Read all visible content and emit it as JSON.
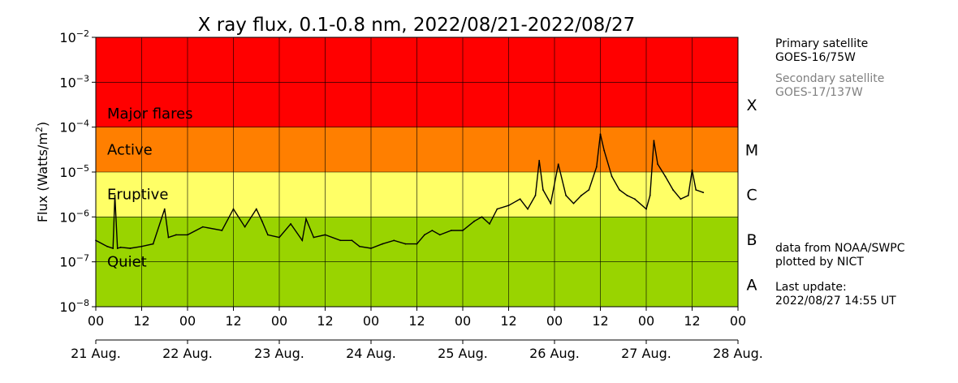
{
  "chart_data": {
    "type": "line",
    "title": "X ray flux, 0.1-0.8 nm, 2022/08/21-2022/08/27",
    "ylabel": "Flux (Watts/m",
    "ylabel_sup": "2",
    "ylabel_close": ")",
    "yscale": "log",
    "ylim": [
      1e-08,
      0.01
    ],
    "y_ticks": [
      {
        "value": 1e-08,
        "base": "10",
        "exp": "−8"
      },
      {
        "value": 1e-07,
        "base": "10",
        "exp": "−7"
      },
      {
        "value": 1e-06,
        "base": "10",
        "exp": "−6"
      },
      {
        "value": 1e-05,
        "base": "10",
        "exp": "−5"
      },
      {
        "value": 0.0001,
        "base": "10",
        "exp": "−4"
      },
      {
        "value": 0.001,
        "base": "10",
        "exp": "−3"
      },
      {
        "value": 0.01,
        "base": "10",
        "exp": "−2"
      }
    ],
    "xlim": [
      "2022-08-21 00:00",
      "2022-08-28 00:00"
    ],
    "x_hour_ticks": [
      "00",
      "12",
      "00",
      "12",
      "00",
      "12",
      "00",
      "12",
      "00",
      "12",
      "00",
      "12",
      "00",
      "12",
      "00"
    ],
    "x_day_labels": [
      "21 Aug.",
      "22 Aug.",
      "23 Aug.",
      "24 Aug.",
      "25 Aug.",
      "26 Aug.",
      "27 Aug.",
      "28 Aug."
    ],
    "grid": true,
    "bands": [
      {
        "name": "Major flares",
        "from": 0.0001,
        "to": 0.01,
        "color": "#ff0000"
      },
      {
        "name": "Active",
        "from": 1e-05,
        "to": 0.0001,
        "color": "#ff7f00"
      },
      {
        "name": "Eruptive",
        "from": 1e-06,
        "to": 1e-05,
        "color": "#ffff66"
      },
      {
        "name": "Quiet",
        "from": 1e-08,
        "to": 1e-06,
        "color": "#99d400"
      }
    ],
    "classes": [
      {
        "label": "X",
        "value": 0.000316
      },
      {
        "label": "M",
        "value": 3.16e-05
      },
      {
        "label": "C",
        "value": 3.16e-06
      },
      {
        "label": "B",
        "value": 3.16e-07
      },
      {
        "label": "A",
        "value": 3.16e-08
      }
    ],
    "series": [
      {
        "color": "#000000",
        "x": [
          "2022-08-21 00:00",
          "2022-08-21 03:00",
          "2022-08-21 04:30",
          "2022-08-21 05:00",
          "2022-08-21 05:40",
          "2022-08-21 06:30",
          "2022-08-21 09:00",
          "2022-08-21 12:00",
          "2022-08-21 15:00",
          "2022-08-21 18:00",
          "2022-08-21 19:00",
          "2022-08-21 21:00",
          "2022-08-22 00:00",
          "2022-08-22 04:00",
          "2022-08-22 09:00",
          "2022-08-22 12:00",
          "2022-08-22 15:00",
          "2022-08-22 18:00",
          "2022-08-22 19:30",
          "2022-08-22 21:00",
          "2022-08-23 00:00",
          "2022-08-23 03:00",
          "2022-08-23 06:00",
          "2022-08-23 07:00",
          "2022-08-23 09:00",
          "2022-08-23 12:00",
          "2022-08-23 16:00",
          "2022-08-23 19:00",
          "2022-08-23 21:00",
          "2022-08-24 00:00",
          "2022-08-24 03:00",
          "2022-08-24 06:00",
          "2022-08-24 09:00",
          "2022-08-24 12:00",
          "2022-08-24 14:00",
          "2022-08-24 16:00",
          "2022-08-24 18:00",
          "2022-08-24 21:00",
          "2022-08-25 00:00",
          "2022-08-25 03:00",
          "2022-08-25 05:00",
          "2022-08-25 07:00",
          "2022-08-25 09:00",
          "2022-08-25 12:00",
          "2022-08-25 15:00",
          "2022-08-25 17:00",
          "2022-08-25 19:00",
          "2022-08-25 20:00",
          "2022-08-25 21:00",
          "2022-08-25 23:00",
          "2022-08-26 01:00",
          "2022-08-26 03:00",
          "2022-08-26 05:00",
          "2022-08-26 07:00",
          "2022-08-26 09:00",
          "2022-08-26 11:00",
          "2022-08-26 12:00",
          "2022-08-26 13:00",
          "2022-08-26 15:00",
          "2022-08-26 17:00",
          "2022-08-26 19:00",
          "2022-08-26 21:00",
          "2022-08-27 00:00",
          "2022-08-27 01:00",
          "2022-08-27 02:00",
          "2022-08-27 03:00",
          "2022-08-27 05:00",
          "2022-08-27 07:00",
          "2022-08-27 09:00",
          "2022-08-27 11:00",
          "2022-08-27 12:00",
          "2022-08-27 13:00",
          "2022-08-27 14:55"
        ],
        "y": [
          3e-07,
          2.2e-07,
          2e-07,
          3e-06,
          2e-07,
          2.1e-07,
          2e-07,
          2.2e-07,
          2.5e-07,
          1.5e-06,
          3.5e-07,
          4e-07,
          4e-07,
          6e-07,
          5e-07,
          1.5e-06,
          6e-07,
          1.5e-06,
          8e-07,
          4e-07,
          3.5e-07,
          7e-07,
          3e-07,
          9e-07,
          3.5e-07,
          4e-07,
          3e-07,
          3e-07,
          2.2e-07,
          2e-07,
          2.5e-07,
          3e-07,
          2.5e-07,
          2.5e-07,
          4e-07,
          5e-07,
          4e-07,
          5e-07,
          5e-07,
          8e-07,
          1e-06,
          7e-07,
          1.5e-06,
          1.8e-06,
          2.5e-06,
          1.5e-06,
          3e-06,
          1.8e-05,
          4e-06,
          2e-06,
          1.5e-05,
          3e-06,
          2e-06,
          3e-06,
          4e-06,
          1.3e-05,
          7e-05,
          3e-05,
          8e-06,
          4e-06,
          3e-06,
          2.5e-06,
          1.5e-06,
          3e-06,
          5e-05,
          1.5e-05,
          8e-06,
          4e-06,
          2.5e-06,
          3e-06,
          1.1e-05,
          4e-06,
          3.5e-06
        ]
      }
    ]
  },
  "legend": {
    "primary_label": "Primary satellite",
    "primary_name": "GOES-16/75W",
    "secondary_label": "Secondary satellite",
    "secondary_name": "GOES-17/137W"
  },
  "credits": {
    "line1": "data from NOAA/SWPC",
    "line2": "plotted by NICT"
  },
  "update": {
    "label": "Last update:",
    "value": "2022/08/27 14:55 UT"
  },
  "colors": {
    "secondary_text": "#808080"
  }
}
